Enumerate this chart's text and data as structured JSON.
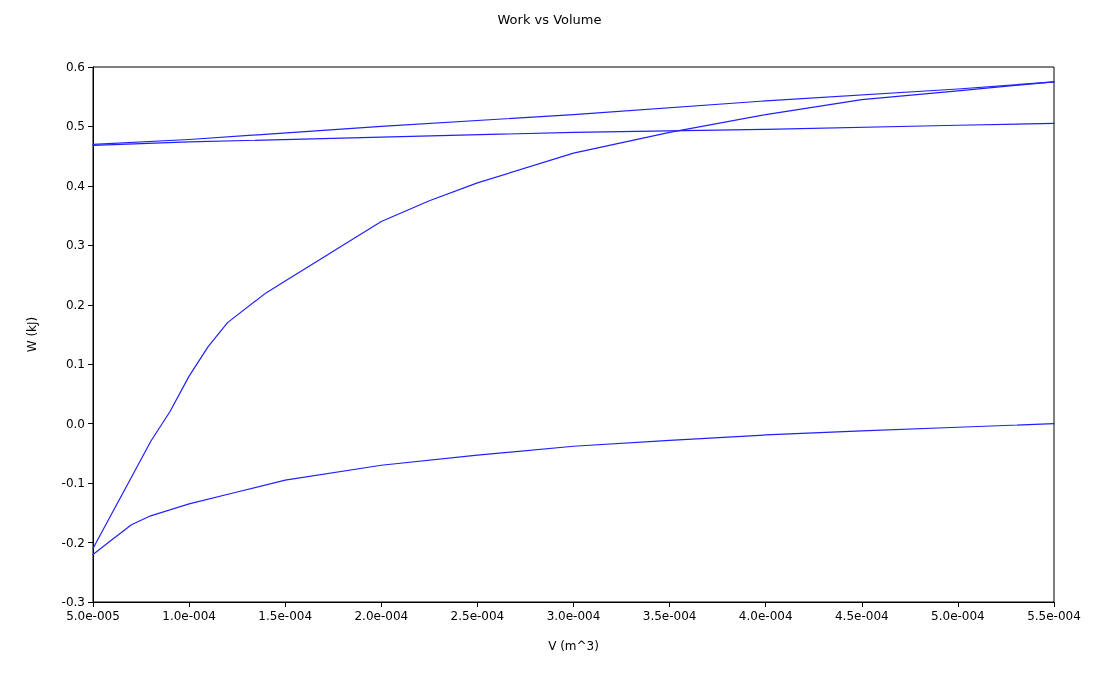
{
  "chart_data": {
    "type": "line",
    "title": "Work vs Volume",
    "xlabel": "V (m^3)",
    "ylabel": "W (kJ)",
    "xlim": [
      5e-05,
      0.00055
    ],
    "xticks": [
      {
        "value": 5e-05,
        "label": "5.0e-005"
      },
      {
        "value": 0.0001,
        "label": "1.0e-004"
      },
      {
        "value": 0.00015,
        "label": "1.5e-004"
      },
      {
        "value": 0.0002,
        "label": "2.0e-004"
      },
      {
        "value": 0.00025,
        "label": "2.5e-004"
      },
      {
        "value": 0.0003,
        "label": "3.0e-004"
      },
      {
        "value": 0.00035,
        "label": "3.5e-004"
      },
      {
        "value": 0.0004,
        "label": "4.0e-004"
      },
      {
        "value": 0.00045,
        "label": "4.5e-004"
      },
      {
        "value": 0.0005,
        "label": "5.0e-004"
      },
      {
        "value": 0.00055,
        "label": "5.5e-004"
      }
    ],
    "ylim": [
      -0.3,
      0.6
    ],
    "yticks": [
      -0.3,
      -0.2,
      -0.1,
      {
        "value": 0,
        "label": "0.0"
      },
      0.1,
      0.2,
      0.3,
      0.4,
      0.5,
      0.6
    ],
    "grid": false,
    "marker": "none",
    "line_style": "solid",
    "series": [
      {
        "color": "#2020ff",
        "x": [
          5e-05,
          6e-05,
          7e-05,
          8e-05,
          9e-05,
          0.0001,
          0.00011,
          0.00012,
          0.00014,
          0.00015,
          0.000175,
          0.0002,
          0.000225,
          0.00025,
          0.0003,
          0.00035,
          0.0004,
          0.00045,
          0.0005,
          0.00055
        ],
        "values": [
          -0.21,
          -0.15,
          -0.09,
          -0.03,
          0.02,
          0.08,
          0.13,
          0.17,
          0.22,
          0.24,
          0.29,
          0.34,
          0.375,
          0.405,
          0.455,
          0.49,
          0.52,
          0.545,
          0.56,
          0.575
        ]
      },
      {
        "color": "#2020ff",
        "x": [
          5e-05,
          6e-05,
          7e-05,
          8e-05,
          0.0001,
          0.000125,
          0.00015,
          0.0002,
          0.00025,
          0.0003,
          0.00035,
          0.0004,
          0.00045,
          0.0005,
          0.00055
        ],
        "values": [
          -0.22,
          -0.195,
          -0.17,
          -0.155,
          -0.135,
          -0.115,
          -0.095,
          -0.07,
          -0.053,
          -0.038,
          -0.028,
          -0.019,
          -0.012,
          -0.006,
          0
        ]
      },
      {
        "color": "#2020ff",
        "x": [
          5e-05,
          0.0001,
          0.0002,
          0.0003,
          0.0004,
          0.0005,
          0.00055
        ],
        "values": [
          0.47,
          0.478,
          0.5,
          0.52,
          0.543,
          0.563,
          0.575
        ]
      },
      {
        "color": "#2020ff",
        "x": [
          5e-05,
          0.0001,
          0.0002,
          0.0003,
          0.0004,
          0.0005,
          0.00055
        ],
        "values": [
          0.468,
          0.474,
          0.482,
          0.49,
          0.495,
          0.502,
          0.505
        ]
      }
    ]
  }
}
